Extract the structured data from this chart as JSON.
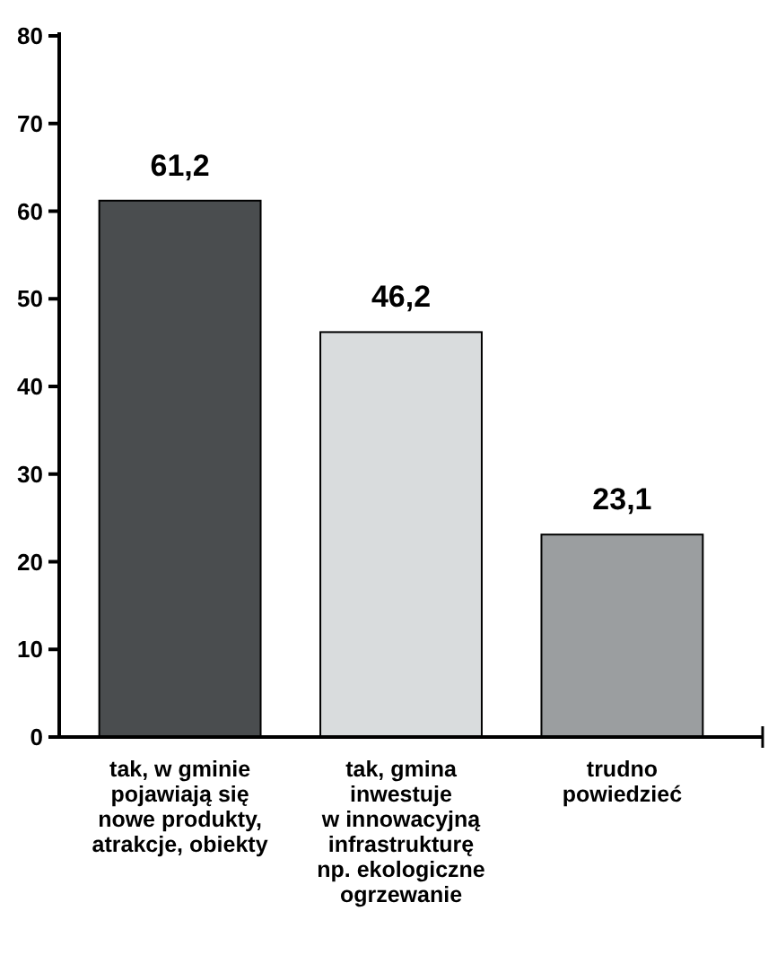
{
  "chart_data": {
    "type": "bar",
    "categories": [
      "tak, w gminie\npojawiają się\nnowe produkty,\natrakcje, obiekty",
      "tak, gmina\ninwestuje\nw innowacyjną\ninfrastrukturę\nnp. ekologiczne\nogrzewanie",
      "trudno\npowiedzieć"
    ],
    "values": [
      61.2,
      46.2,
      23.1
    ],
    "colors": [
      "#4a4d4f",
      "#d9dcdd",
      "#9b9ea0"
    ],
    "value_labels": [
      "61,2",
      "46,2",
      "23,1"
    ],
    "ylim": [
      0,
      80
    ],
    "yticks": [
      0,
      10,
      20,
      30,
      40,
      50,
      60,
      70,
      80
    ],
    "grid": false
  }
}
